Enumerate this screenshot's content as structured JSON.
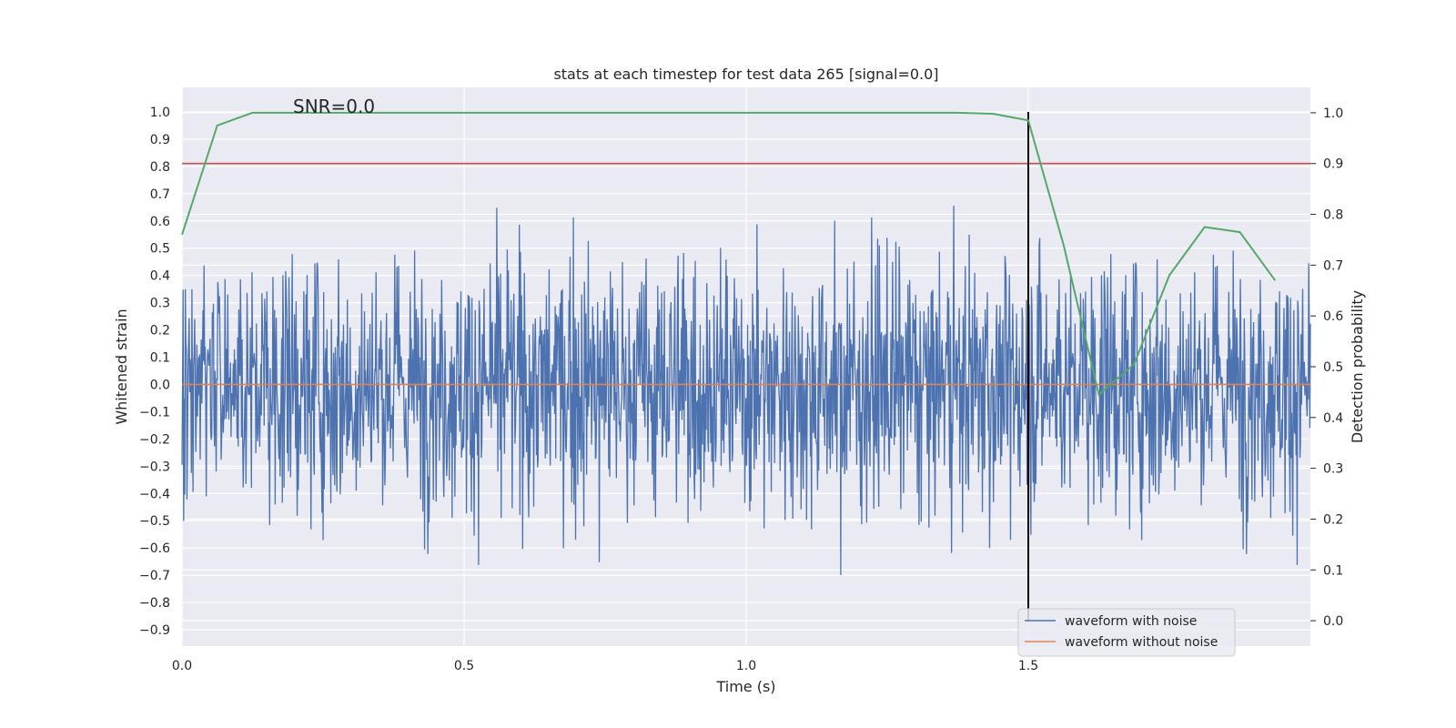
{
  "chart_data": {
    "type": "line",
    "title": "stats at each timestep for test data 265 [signal=0.0]",
    "xlabel": "Time (s)",
    "ylabel": "Whitened strain",
    "ylabel_right": "Detection probability",
    "xlim": [
      0.0,
      2.0
    ],
    "ylim": [
      -0.96,
      1.09
    ],
    "ylim_right": [
      -0.05,
      1.05
    ],
    "x_ticks": [
      0.0,
      0.5,
      1.0,
      1.5
    ],
    "x_tick_labels": [
      "0.0",
      "0.5",
      "1.0",
      "1.5"
    ],
    "y_ticks": [
      1.0,
      0.9,
      0.8,
      0.7,
      0.6,
      0.5,
      0.4,
      0.3,
      0.2,
      0.1,
      0.0,
      -0.1,
      -0.2,
      -0.3,
      -0.4,
      -0.5,
      -0.6,
      -0.7,
      -0.8,
      -0.9
    ],
    "y_tick_labels": [
      "1.0",
      "0.9",
      "0.8",
      "0.7",
      "0.6",
      "0.5",
      "0.4",
      "0.3",
      "0.2",
      "0.1",
      "0.0",
      "−0.1",
      "−0.2",
      "−0.3",
      "−0.4",
      "−0.5",
      "−0.6",
      "−0.7",
      "−0.8",
      "−0.9"
    ],
    "y_right_ticks": [
      1.0,
      0.9,
      0.8,
      0.7,
      0.6,
      0.5,
      0.4,
      0.3,
      0.2,
      0.1,
      0.0
    ],
    "y_right_tick_labels": [
      "1.0",
      "0.9",
      "0.8",
      "0.7",
      "0.6",
      "0.5",
      "0.4",
      "0.3",
      "0.2",
      "0.1",
      "0.0"
    ],
    "annotation": "SNR=0.0",
    "annotation_x": 0.2,
    "annotation_y": 1.0,
    "vline_x": 1.5,
    "vline_y": [
      -0.87,
      1.0
    ],
    "threshold": 0.9,
    "noise_samples": 2048,
    "noise_amplitude": [
      -0.87,
      1.0
    ],
    "series": [
      {
        "name": "waveform with noise",
        "axis": "left",
        "color": "#4c72b0"
      },
      {
        "name": "waveform without noise",
        "axis": "left",
        "color": "#dd8452",
        "value": 0.0
      },
      {
        "name": "detection probability",
        "axis": "right",
        "color": "#55a868",
        "x": [
          0.0,
          0.0625,
          0.125,
          0.1875,
          0.25,
          0.5,
          0.75,
          1.0,
          1.25,
          1.375,
          1.4375,
          1.5,
          1.5625,
          1.625,
          1.6875,
          1.75,
          1.8125,
          1.875,
          1.9375
        ],
        "y": [
          0.76,
          0.975,
          1.0,
          1.0,
          1.0,
          1.0,
          1.0,
          1.0,
          1.0,
          1.0,
          0.998,
          0.985,
          0.74,
          0.445,
          0.505,
          0.68,
          0.775,
          0.765,
          0.67
        ]
      }
    ],
    "legend": [
      "waveform with noise",
      "waveform without noise"
    ],
    "legend_position": "lower-right",
    "colors": {
      "background": "#eaeaf2",
      "grid": "#ffffff",
      "threshold": "#c44e52",
      "vline": "#000000"
    }
  }
}
